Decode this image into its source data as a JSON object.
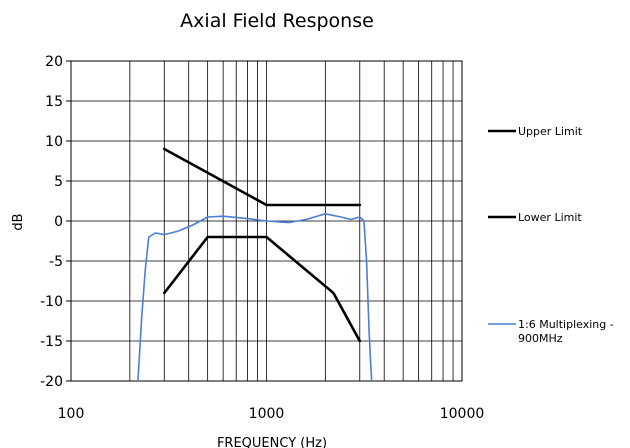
{
  "chart_data": {
    "type": "line",
    "title": "Axial Field Response",
    "xlabel": "FREQUENCY (Hz)",
    "ylabel": "dB",
    "x_scale": "log",
    "xlim": [
      100,
      10000
    ],
    "ylim": [
      -20,
      20
    ],
    "x_ticks": [
      100,
      1000,
      10000
    ],
    "x_tick_labels": [
      "100",
      "1000",
      "10000"
    ],
    "y_ticks": [
      20,
      15,
      10,
      5,
      0,
      -5,
      -10,
      -15,
      -20
    ],
    "y_tick_labels": [
      "20",
      "15",
      "10",
      "5",
      "0",
      "-5",
      "-10",
      "-15",
      "-20"
    ],
    "grid": true,
    "legend_position": "right",
    "series": [
      {
        "name": "Upper Limit",
        "color": "#000000",
        "points": [
          [
            300,
            9
          ],
          [
            1000,
            2
          ],
          [
            3000,
            2
          ]
        ]
      },
      {
        "name": "Lower Limit",
        "color": "#000000",
        "points": [
          [
            300,
            -9
          ],
          [
            500,
            -2
          ],
          [
            1000,
            -2
          ],
          [
            2200,
            -9
          ],
          [
            3000,
            -15
          ]
        ]
      },
      {
        "name": "1:6 Multiplexing - 900MHz",
        "legend_lines": [
          "1:6 Multiplexing -",
          "900MHz"
        ],
        "color": "#4a7fd4",
        "points": [
          [
            220,
            -20
          ],
          [
            230,
            -12
          ],
          [
            240,
            -6
          ],
          [
            250,
            -2
          ],
          [
            270,
            -1.5
          ],
          [
            300,
            -1.7
          ],
          [
            350,
            -1.3
          ],
          [
            420,
            -0.5
          ],
          [
            500,
            0.5
          ],
          [
            600,
            0.6
          ],
          [
            800,
            0.3
          ],
          [
            1000,
            0
          ],
          [
            1300,
            -0.2
          ],
          [
            1600,
            0.2
          ],
          [
            2000,
            0.9
          ],
          [
            2400,
            0.5
          ],
          [
            2700,
            0.2
          ],
          [
            3000,
            0.5
          ],
          [
            3150,
            0
          ],
          [
            3250,
            -5
          ],
          [
            3350,
            -14
          ],
          [
            3450,
            -20
          ]
        ]
      }
    ]
  }
}
